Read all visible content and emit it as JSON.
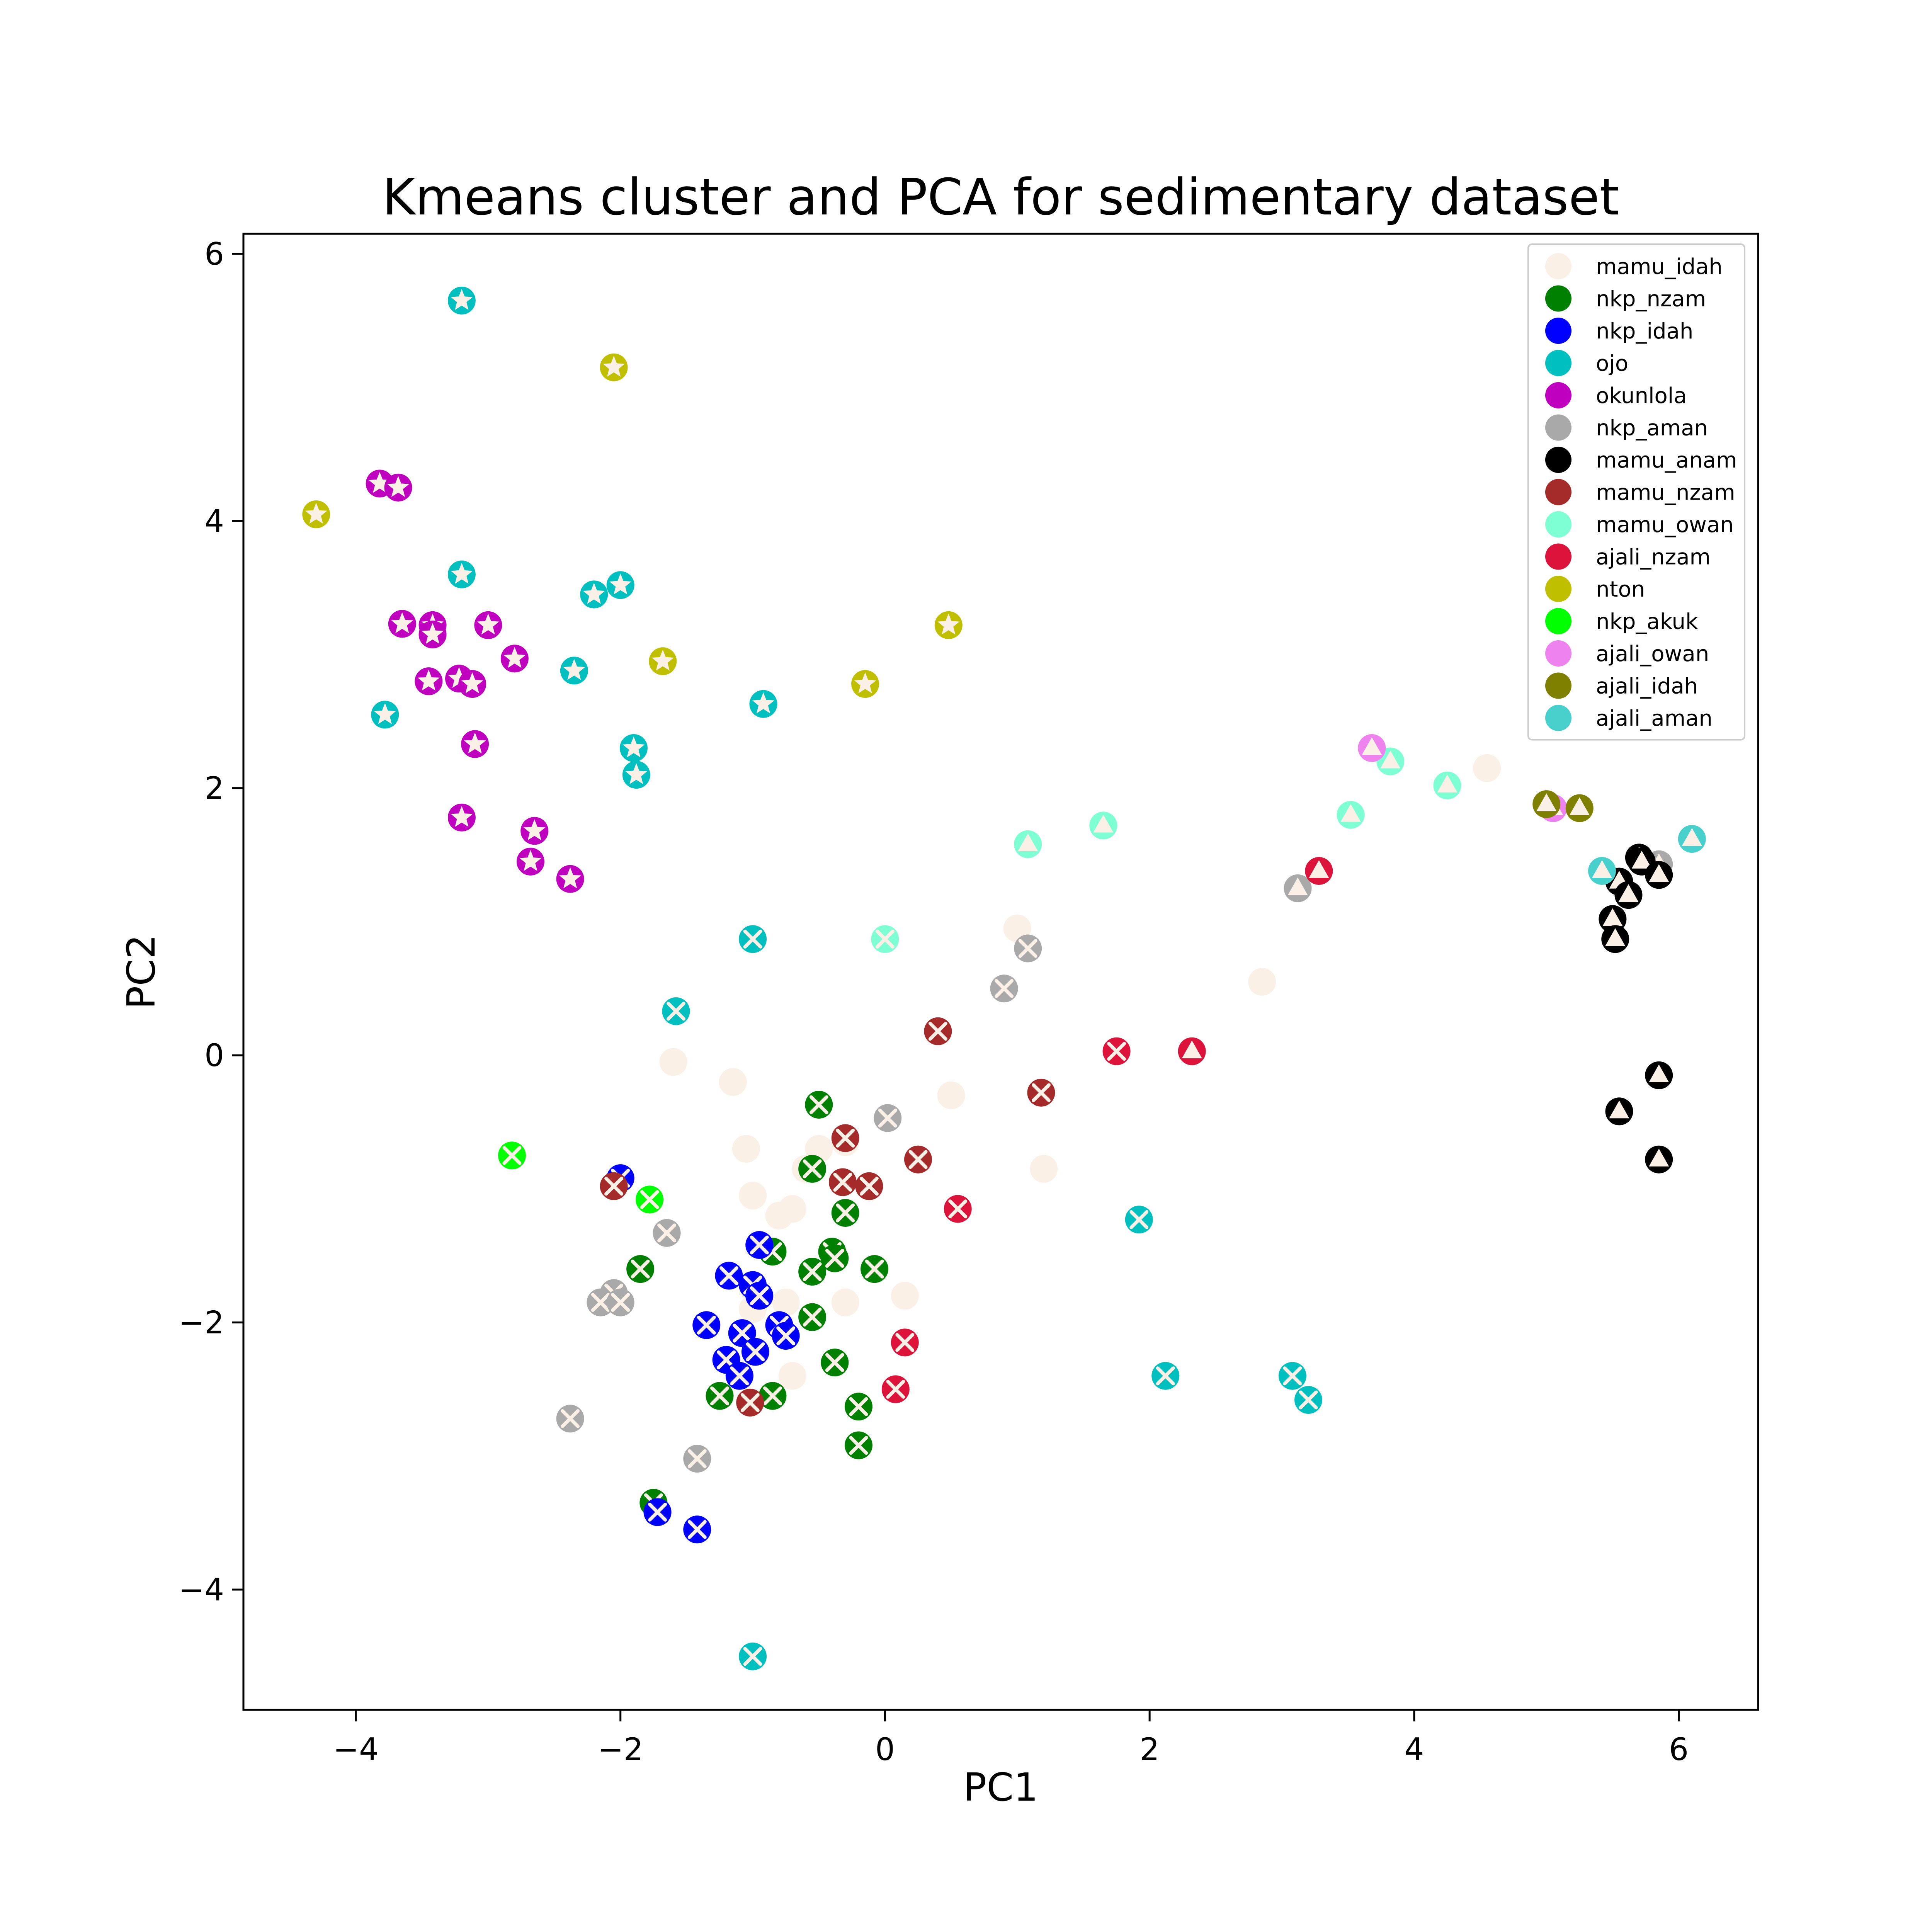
{
  "chart_data": {
    "type": "scatter",
    "title": "Kmeans cluster and PCA for sedimentary dataset",
    "xlabel": "PC1",
    "ylabel": "PC2",
    "xlim": [
      -4.85,
      6.6
    ],
    "ylim": [
      -4.9,
      6.15
    ],
    "xticks": [
      -4,
      -2,
      0,
      2,
      4,
      6
    ],
    "yticks": [
      -4,
      -2,
      0,
      2,
      4,
      6
    ],
    "xtick_labels": [
      "−4",
      "−2",
      "0",
      "2",
      "4",
      "6"
    ],
    "ytick_labels": [
      "−4",
      "−2",
      "0",
      "2",
      "4",
      "6"
    ],
    "grid": false,
    "legend_position": "top-right",
    "cluster_markers": [
      "star",
      "x",
      "triangle"
    ],
    "series": [
      {
        "name": "mamu_idah",
        "color": "#faf0e6",
        "points": [
          [
            -1.6,
            -0.05,
            1
          ],
          [
            -1.15,
            -0.2,
            1
          ],
          [
            -1.05,
            -0.7,
            1
          ],
          [
            -1.0,
            -1.05,
            1
          ],
          [
            -0.8,
            -1.2,
            1
          ],
          [
            -0.7,
            -1.15,
            1
          ],
          [
            -0.5,
            -0.7,
            1
          ],
          [
            -0.3,
            -0.65,
            1
          ],
          [
            -0.6,
            -0.85,
            1
          ],
          [
            0.5,
            -0.3,
            1
          ],
          [
            1.0,
            0.95,
            1
          ],
          [
            1.2,
            -0.85,
            1
          ],
          [
            0.15,
            -1.8,
            1
          ],
          [
            -0.3,
            -1.85,
            1
          ],
          [
            -0.75,
            -1.85,
            1
          ],
          [
            -0.7,
            -2.4,
            1
          ],
          [
            -1.0,
            -1.9,
            1
          ],
          [
            2.85,
            0.55,
            2
          ],
          [
            4.55,
            2.15,
            2
          ]
        ]
      },
      {
        "name": "nkp_nzam",
        "color": "#008000",
        "points": [
          [
            -0.5,
            -0.37,
            1
          ],
          [
            -0.55,
            -0.85,
            1
          ],
          [
            -0.3,
            -1.18,
            1
          ],
          [
            -0.85,
            -1.47,
            1
          ],
          [
            -0.4,
            -1.47,
            1
          ],
          [
            -0.38,
            -1.52,
            1
          ],
          [
            -0.55,
            -1.62,
            1
          ],
          [
            -0.08,
            -1.6,
            1
          ],
          [
            -0.55,
            -1.96,
            1
          ],
          [
            -0.38,
            -2.3,
            1
          ],
          [
            -0.2,
            -2.63,
            1
          ],
          [
            -0.2,
            -2.92,
            1
          ],
          [
            -0.85,
            -2.55,
            1
          ],
          [
            -1.25,
            -2.55,
            1
          ],
          [
            -1.85,
            -1.6,
            1
          ],
          [
            -1.75,
            -3.35,
            1
          ]
        ]
      },
      {
        "name": "nkp_idah",
        "color": "#0000ff",
        "points": [
          [
            -2.0,
            -0.92,
            1
          ],
          [
            -0.95,
            -1.42,
            1
          ],
          [
            -1.18,
            -1.65,
            1
          ],
          [
            -1.0,
            -1.72,
            1
          ],
          [
            -0.95,
            -1.8,
            1
          ],
          [
            -1.35,
            -2.02,
            1
          ],
          [
            -1.08,
            -2.08,
            1
          ],
          [
            -0.8,
            -2.02,
            1
          ],
          [
            -0.75,
            -2.1,
            1
          ],
          [
            -0.98,
            -2.22,
            1
          ],
          [
            -1.2,
            -2.28,
            1
          ],
          [
            -1.1,
            -2.4,
            1
          ],
          [
            -1.72,
            -3.42,
            1
          ],
          [
            -1.42,
            -3.55,
            1
          ]
        ]
      },
      {
        "name": "ojo",
        "color": "#00bfbf",
        "points": [
          [
            -3.2,
            5.65,
            0
          ],
          [
            -3.2,
            3.6,
            0
          ],
          [
            -2.2,
            3.45,
            0
          ],
          [
            -2.0,
            3.52,
            0
          ],
          [
            -2.35,
            2.88,
            0
          ],
          [
            -3.78,
            2.55,
            0
          ],
          [
            -1.9,
            2.3,
            0
          ],
          [
            -1.88,
            2.1,
            0
          ],
          [
            -0.92,
            2.63,
            0
          ],
          [
            -1.0,
            0.87,
            1
          ],
          [
            -1.58,
            0.33,
            1
          ],
          [
            1.92,
            -1.23,
            1
          ],
          [
            2.12,
            -2.4,
            1
          ],
          [
            3.08,
            -2.4,
            1
          ],
          [
            3.2,
            -2.58,
            1
          ],
          [
            -1.0,
            -4.5,
            1
          ]
        ]
      },
      {
        "name": "okunlola",
        "color": "#bf00bf",
        "points": [
          [
            -3.82,
            4.28,
            0
          ],
          [
            -3.68,
            4.25,
            0
          ],
          [
            -3.65,
            3.23,
            0
          ],
          [
            -3.42,
            3.22,
            0
          ],
          [
            -3.42,
            3.15,
            0
          ],
          [
            -3.0,
            3.22,
            0
          ],
          [
            -3.45,
            2.8,
            0
          ],
          [
            -3.22,
            2.82,
            0
          ],
          [
            -3.12,
            2.78,
            0
          ],
          [
            -2.8,
            2.97,
            0
          ],
          [
            -3.1,
            2.33,
            0
          ],
          [
            -3.2,
            1.78,
            0
          ],
          [
            -2.65,
            1.68,
            0
          ],
          [
            -2.68,
            1.45,
            0
          ],
          [
            -2.38,
            1.32,
            0
          ]
        ]
      },
      {
        "name": "nkp_aman",
        "color": "#a9a9a9",
        "points": [
          [
            1.08,
            0.8,
            1
          ],
          [
            0.9,
            0.5,
            1
          ],
          [
            0.02,
            -0.47,
            1
          ],
          [
            -1.65,
            -1.33,
            1
          ],
          [
            -2.05,
            -1.78,
            1
          ],
          [
            -2.15,
            -1.85,
            1
          ],
          [
            -2.0,
            -1.85,
            1
          ],
          [
            -2.38,
            -2.72,
            1
          ],
          [
            -1.42,
            -3.02,
            1
          ],
          [
            3.12,
            1.25,
            2
          ],
          [
            5.85,
            1.43,
            2
          ]
        ]
      },
      {
        "name": "mamu_anam",
        "color": "#000000",
        "points": [
          [
            5.7,
            1.48,
            2
          ],
          [
            5.72,
            1.45,
            2
          ],
          [
            5.55,
            1.3,
            2
          ],
          [
            5.5,
            1.02,
            2
          ],
          [
            5.62,
            1.2,
            2
          ],
          [
            5.52,
            0.87,
            2
          ],
          [
            5.85,
            1.35,
            2
          ],
          [
            5.85,
            -0.15,
            2
          ],
          [
            5.55,
            -0.42,
            2
          ],
          [
            5.85,
            -0.78,
            2
          ]
        ]
      },
      {
        "name": "mamu_nzam",
        "color": "#a52a2a",
        "points": [
          [
            0.4,
            0.18,
            1
          ],
          [
            1.18,
            -0.28,
            1
          ],
          [
            -0.3,
            -0.62,
            1
          ],
          [
            0.25,
            -0.78,
            1
          ],
          [
            -0.32,
            -0.95,
            1
          ],
          [
            -0.12,
            -0.98,
            1
          ],
          [
            -2.05,
            -0.98,
            1
          ],
          [
            -1.02,
            -2.6,
            1
          ]
        ]
      },
      {
        "name": "mamu_owan",
        "color": "#7fffd4",
        "points": [
          [
            0.0,
            0.87,
            1
          ],
          [
            1.08,
            1.58,
            2
          ],
          [
            1.65,
            1.72,
            2
          ],
          [
            3.52,
            1.8,
            2
          ],
          [
            3.82,
            2.2,
            2
          ],
          [
            4.25,
            2.02,
            2
          ]
        ]
      },
      {
        "name": "ajali_nzam",
        "color": "#dc143c",
        "points": [
          [
            1.75,
            0.03,
            1
          ],
          [
            0.55,
            -1.15,
            1
          ],
          [
            0.15,
            -2.15,
            1
          ],
          [
            0.08,
            -2.5,
            1
          ],
          [
            2.32,
            0.03,
            2
          ],
          [
            3.28,
            1.38,
            2
          ]
        ]
      },
      {
        "name": "nton",
        "color": "#bfbf00",
        "points": [
          [
            -4.3,
            4.05,
            0
          ],
          [
            -2.05,
            5.15,
            0
          ],
          [
            0.48,
            3.22,
            0
          ],
          [
            -1.68,
            2.95,
            0
          ],
          [
            -0.15,
            2.78,
            0
          ]
        ]
      },
      {
        "name": "nkp_akuk",
        "color": "#00ff00",
        "points": [
          [
            -2.82,
            -0.75,
            1
          ],
          [
            -1.78,
            -1.08,
            1
          ]
        ]
      },
      {
        "name": "ajali_owan",
        "color": "#ee82ee",
        "points": [
          [
            3.68,
            2.3,
            2
          ],
          [
            5.05,
            1.85,
            2
          ]
        ]
      },
      {
        "name": "ajali_idah",
        "color": "#808000",
        "points": [
          [
            5.0,
            1.88,
            2
          ],
          [
            5.25,
            1.85,
            2
          ]
        ]
      },
      {
        "name": "ajali_aman",
        "color": "#48d1cc",
        "points": [
          [
            5.42,
            1.38,
            2
          ],
          [
            6.1,
            1.62,
            2
          ]
        ]
      }
    ]
  }
}
